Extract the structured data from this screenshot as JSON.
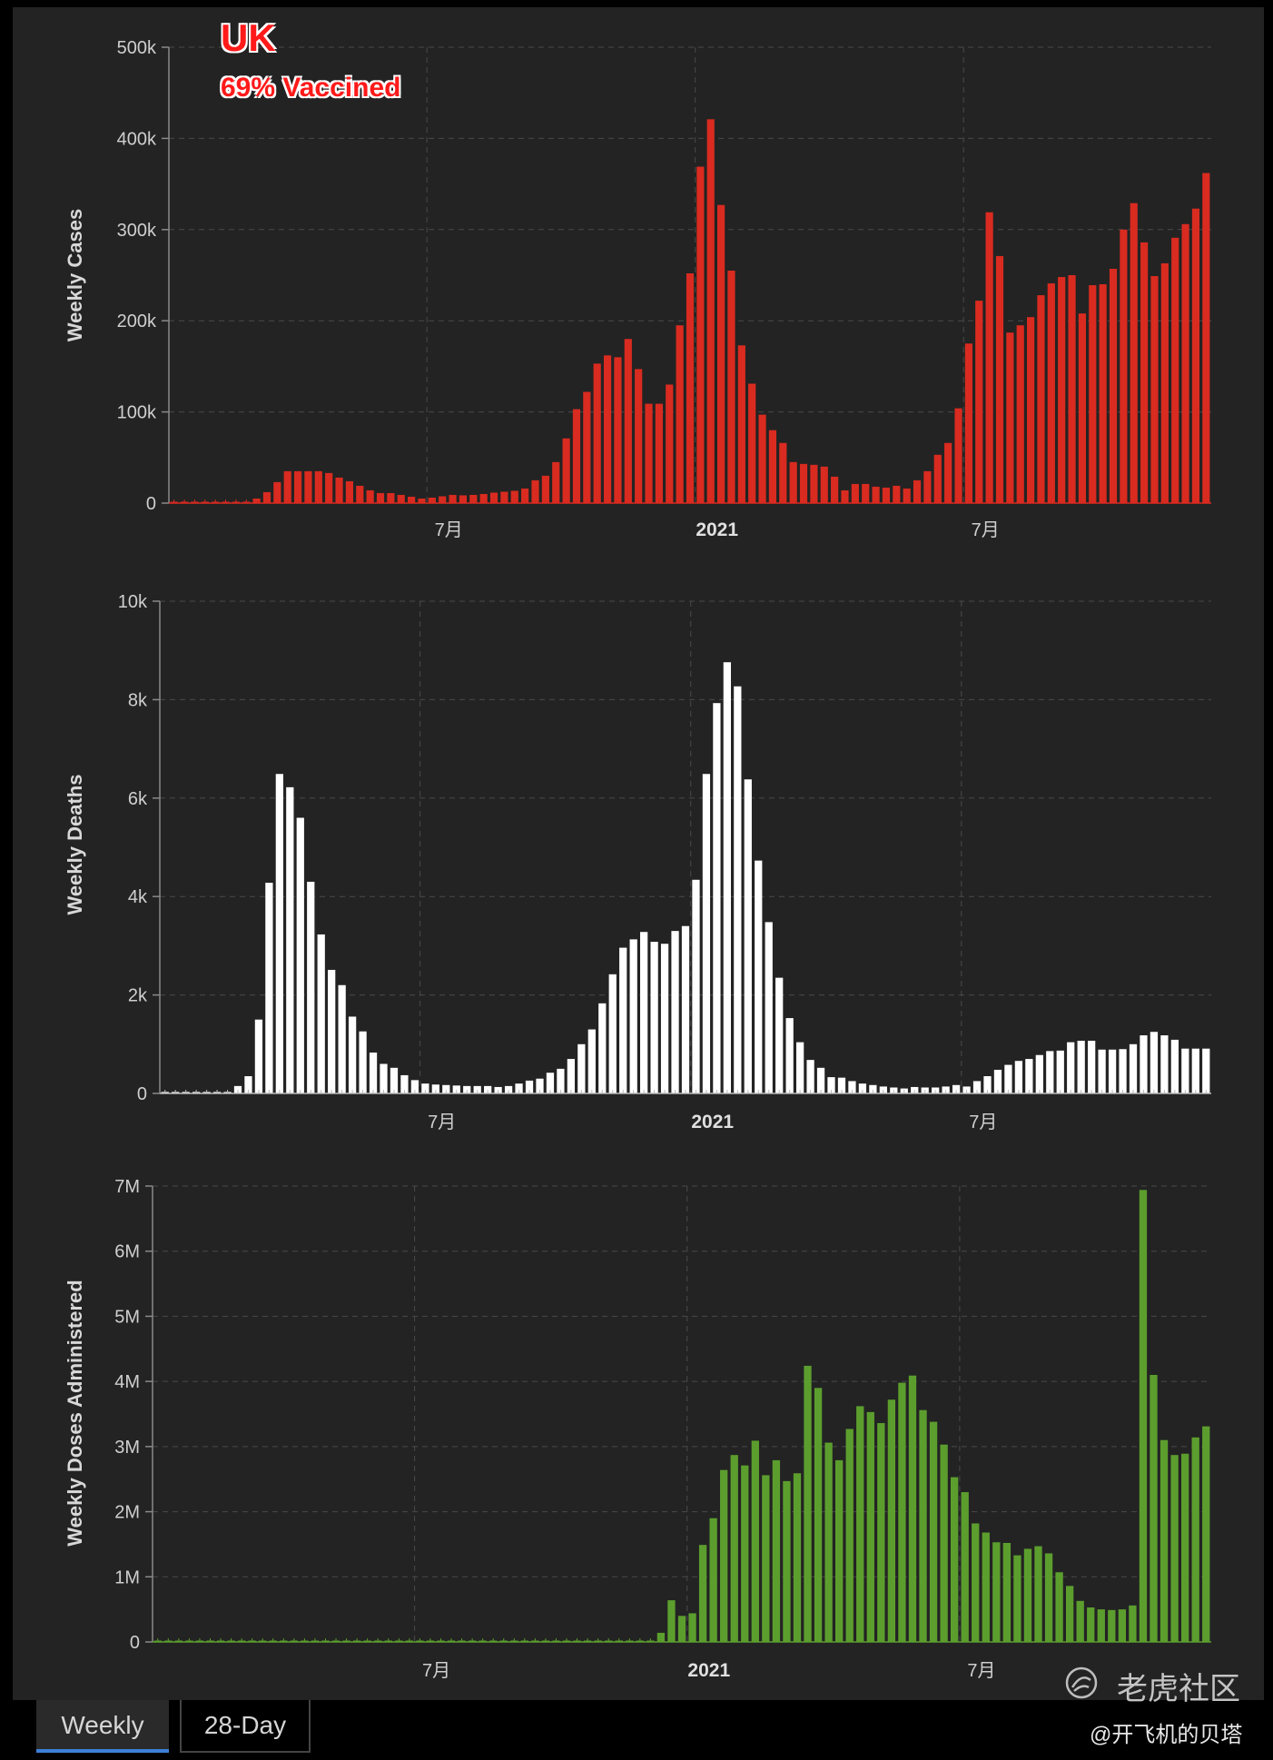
{
  "header": {
    "title": "UK",
    "subtitle": "69% Vaccined"
  },
  "tabs": [
    {
      "label": "Weekly"
    },
    {
      "label": "28-Day"
    }
  ],
  "watermark": {
    "text": "老虎社区",
    "handle": "@开飞机的贝塔"
  },
  "colors": {
    "cases": "#d92b20",
    "deaths": "#ffffff",
    "doses": "#5c9e2e",
    "background": "#232323"
  },
  "chart_data": [
    {
      "type": "bar",
      "title": "Weekly Cases",
      "ylabel": "Weekly Cases",
      "ylim": [
        0,
        500000
      ],
      "yticks": [
        "0",
        "100k",
        "200k",
        "300k",
        "400k",
        "500k"
      ],
      "xticks": [
        {
          "label": "7月",
          "index": 25,
          "bold": false
        },
        {
          "label": "2021",
          "index": 51,
          "bold": true
        },
        {
          "label": "7月",
          "index": 77,
          "bold": false
        }
      ],
      "values": [
        500,
        500,
        500,
        500,
        500,
        500,
        500,
        500,
        5000,
        12000,
        23000,
        35000,
        35000,
        35000,
        35000,
        33000,
        28000,
        24000,
        19000,
        14000,
        11000,
        11000,
        9000,
        7000,
        5000,
        6000,
        7500,
        9000,
        8500,
        9000,
        10000,
        11500,
        12500,
        13500,
        16000,
        25000,
        30000,
        45000,
        71000,
        103000,
        122000,
        153000,
        162000,
        160000,
        180000,
        147000,
        109000,
        109000,
        130000,
        195000,
        252000,
        369000,
        421000,
        327000,
        255000,
        173000,
        131000,
        97000,
        80000,
        66000,
        45000,
        43000,
        42000,
        40000,
        29000,
        14000,
        21000,
        21000,
        18000,
        17000,
        19000,
        16000,
        25000,
        35000,
        53000,
        66000,
        104000,
        175000,
        222000,
        319000,
        271000,
        187000,
        195000,
        204000,
        228000,
        241000,
        248000,
        250000,
        208000,
        239000,
        240000,
        257000,
        300000,
        329000,
        286000,
        249000,
        263000,
        291000,
        306000,
        323000,
        362000
      ]
    },
    {
      "type": "bar",
      "title": "Weekly Deaths",
      "ylabel": "Weekly Deaths",
      "ylim": [
        0,
        10000
      ],
      "yticks": [
        "0",
        "2k",
        "4k",
        "6k",
        "8k",
        "10k"
      ],
      "xticks": [
        {
          "label": "7月",
          "index": 25,
          "bold": false
        },
        {
          "label": "2021",
          "index": 51,
          "bold": true
        },
        {
          "label": "7月",
          "index": 77,
          "bold": false
        }
      ],
      "values": [
        30,
        30,
        30,
        30,
        30,
        30,
        30,
        150,
        350,
        1500,
        4280,
        6490,
        6220,
        5600,
        4300,
        3230,
        2510,
        2200,
        1560,
        1260,
        830,
        600,
        520,
        370,
        270,
        200,
        180,
        170,
        160,
        150,
        150,
        150,
        130,
        150,
        200,
        260,
        300,
        420,
        500,
        700,
        1000,
        1300,
        1830,
        2420,
        2960,
        3130,
        3280,
        3080,
        3040,
        3300,
        3400,
        4340,
        6490,
        7930,
        8760,
        8270,
        6380,
        4730,
        3480,
        2350,
        1530,
        1040,
        680,
        520,
        330,
        320,
        250,
        200,
        170,
        140,
        120,
        100,
        130,
        120,
        120,
        140,
        170,
        140,
        250,
        350,
        480,
        580,
        660,
        700,
        780,
        860,
        870,
        1040,
        1070,
        1070,
        890,
        890,
        900,
        1000,
        1180,
        1250,
        1180,
        1090,
        910,
        910,
        910
      ]
    },
    {
      "type": "bar",
      "title": "Weekly Doses Administered",
      "ylabel": "Weekly Doses Administered",
      "ylim": [
        0,
        7000000
      ],
      "yticks": [
        "0",
        "1M",
        "2M",
        "3M",
        "4M",
        "5M",
        "6M",
        "7M"
      ],
      "xticks": [
        {
          "label": "7月",
          "index": 25,
          "bold": false
        },
        {
          "label": "2021",
          "index": 51,
          "bold": true
        },
        {
          "label": "7月",
          "index": 77,
          "bold": false
        }
      ],
      "values": [
        0,
        0,
        0,
        0,
        0,
        0,
        0,
        0,
        0,
        0,
        0,
        0,
        0,
        0,
        0,
        0,
        0,
        0,
        0,
        0,
        0,
        0,
        0,
        0,
        0,
        0,
        0,
        0,
        0,
        0,
        0,
        0,
        0,
        0,
        0,
        0,
        0,
        0,
        0,
        0,
        0,
        0,
        0,
        0,
        0,
        0,
        0,
        0,
        140000,
        640000,
        400000,
        440000,
        1490000,
        1900000,
        2640000,
        2870000,
        2710000,
        3090000,
        2560000,
        2790000,
        2470000,
        2590000,
        4240000,
        3900000,
        3060000,
        2790000,
        3270000,
        3620000,
        3530000,
        3360000,
        3720000,
        3980000,
        4090000,
        3560000,
        3380000,
        3030000,
        2530000,
        2300000,
        1820000,
        1680000,
        1530000,
        1520000,
        1330000,
        1430000,
        1470000,
        1360000,
        1070000,
        860000,
        630000,
        530000,
        500000,
        490000,
        500000,
        560000,
        6940000,
        4100000,
        3100000,
        2870000,
        2890000,
        3140000,
        3310000
      ]
    }
  ]
}
